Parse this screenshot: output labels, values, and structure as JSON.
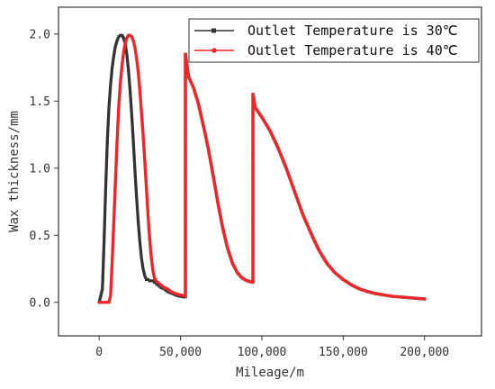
{
  "chart_data": {
    "type": "line",
    "xlabel": "Mileage/m",
    "ylabel": "Wax thickness/mm",
    "xlim": [
      -25000,
      235000
    ],
    "ylim": [
      -0.25,
      2.2
    ],
    "x_ticks": [
      0,
      50000,
      100000,
      150000,
      200000
    ],
    "x_tick_labels": [
      "0",
      "50,000",
      "100,000",
      "150,000",
      "200,000"
    ],
    "y_ticks": [
      0.0,
      0.5,
      1.0,
      1.5,
      2.0
    ],
    "y_tick_labels": [
      "0.0",
      "0.5",
      "1.0",
      "1.5",
      "2.0"
    ],
    "legend_position": "top-right",
    "series": [
      {
        "name": "Outlet Temperature is 30℃",
        "color": "#333333",
        "marker": "square",
        "x": [
          0,
          2000,
          3000,
          4000,
          5000,
          6000,
          7000,
          8000,
          9000,
          10000,
          11000,
          12000,
          13000,
          14000,
          15000,
          16000,
          17000,
          18000,
          19000,
          20000,
          21000,
          22000,
          23000,
          24000,
          25000,
          26000,
          27000,
          28000,
          29000,
          30000,
          31000,
          32000,
          33000,
          34000,
          36000,
          38000,
          40000,
          42000,
          44000,
          46000,
          48000,
          50000,
          52000,
          53000,
          53001,
          55000,
          58000,
          61000,
          64000,
          67000,
          70000,
          73000,
          76000,
          79000,
          82000,
          85000,
          88000,
          91000,
          94000,
          94500,
          94501,
          96000,
          100000,
          105000,
          110000,
          115000,
          120000,
          125000,
          130000,
          135000,
          140000,
          145000,
          150000,
          155000,
          160000,
          165000,
          170000,
          175000,
          180000,
          185000,
          190000,
          195000,
          200000
        ],
        "y": [
          0,
          0.1,
          0.45,
          0.85,
          1.2,
          1.45,
          1.62,
          1.75,
          1.84,
          1.91,
          1.95,
          1.98,
          1.99,
          1.99,
          1.97,
          1.93,
          1.85,
          1.73,
          1.58,
          1.4,
          1.2,
          0.98,
          0.78,
          0.6,
          0.45,
          0.33,
          0.25,
          0.2,
          0.17,
          0.17,
          0.16,
          0.16,
          0.16,
          0.15,
          0.13,
          0.11,
          0.1,
          0.08,
          0.07,
          0.06,
          0.05,
          0.045,
          0.04,
          0.04,
          1.85,
          1.68,
          1.6,
          1.48,
          1.32,
          1.15,
          0.95,
          0.74,
          0.55,
          0.4,
          0.29,
          0.22,
          0.18,
          0.16,
          0.15,
          0.15,
          1.55,
          1.45,
          1.38,
          1.28,
          1.15,
          1.0,
          0.83,
          0.66,
          0.52,
          0.39,
          0.29,
          0.22,
          0.17,
          0.13,
          0.1,
          0.08,
          0.065,
          0.055,
          0.045,
          0.04,
          0.035,
          0.03,
          0.025
        ]
      },
      {
        "name": "Outlet Temperature is 40℃",
        "color": "#e8282b",
        "marker": "circle",
        "x": [
          0,
          3000,
          4000,
          5000,
          6000,
          7000,
          8000,
          9000,
          10000,
          11000,
          12000,
          13000,
          14000,
          15000,
          16000,
          17000,
          18000,
          19000,
          20000,
          21000,
          22000,
          23000,
          24000,
          25000,
          26000,
          27000,
          28000,
          29000,
          30000,
          31000,
          32000,
          33000,
          34000,
          35000,
          36000,
          37000,
          38000,
          40000,
          42000,
          44000,
          46000,
          48000,
          50000,
          52000,
          53000,
          53001,
          55000,
          58000,
          61000,
          64000,
          67000,
          70000,
          73000,
          76000,
          79000,
          82000,
          85000,
          88000,
          91000,
          94000,
          94500,
          94501,
          96000,
          100000,
          105000,
          110000,
          115000,
          120000,
          125000,
          130000,
          135000,
          140000,
          145000,
          150000,
          155000,
          160000,
          165000,
          170000,
          175000,
          180000,
          185000,
          190000,
          195000,
          200000
        ],
        "y": [
          0,
          0,
          0,
          0,
          0,
          0.05,
          0.3,
          0.6,
          0.9,
          1.2,
          1.45,
          1.63,
          1.76,
          1.86,
          1.93,
          1.97,
          1.99,
          1.99,
          1.98,
          1.95,
          1.9,
          1.82,
          1.72,
          1.58,
          1.42,
          1.25,
          1.06,
          0.86,
          0.66,
          0.48,
          0.34,
          0.24,
          0.18,
          0.16,
          0.15,
          0.14,
          0.13,
          0.11,
          0.1,
          0.08,
          0.07,
          0.06,
          0.055,
          0.05,
          0.045,
          1.85,
          1.68,
          1.6,
          1.48,
          1.32,
          1.15,
          0.95,
          0.74,
          0.55,
          0.4,
          0.29,
          0.22,
          0.18,
          0.16,
          0.15,
          0.15,
          1.55,
          1.45,
          1.38,
          1.28,
          1.15,
          1.0,
          0.83,
          0.66,
          0.52,
          0.39,
          0.29,
          0.22,
          0.17,
          0.13,
          0.1,
          0.08,
          0.065,
          0.055,
          0.045,
          0.04,
          0.035,
          0.03,
          0.025
        ]
      }
    ]
  }
}
